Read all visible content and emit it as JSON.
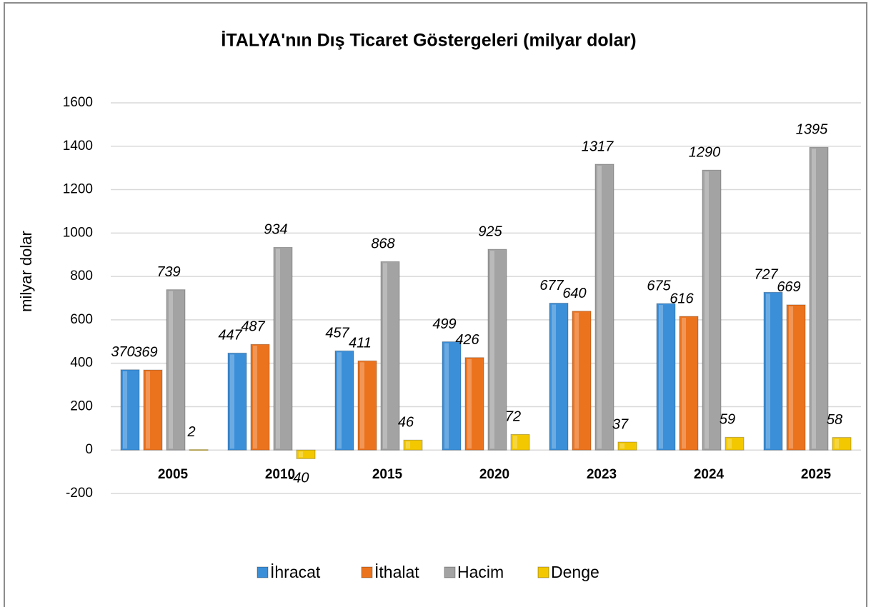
{
  "chart_data": {
    "type": "bar",
    "title": "İTALYA'nın Dış Ticaret Göstergeleri (milyar dolar)",
    "y_label": "milyar dolar",
    "categories": [
      "2005",
      "2010",
      "2015",
      "2020",
      "2023",
      "2024",
      "2025"
    ],
    "series": [
      {
        "name": "İhracat",
        "color": "#3b8fd9",
        "values": [
          370,
          447,
          457,
          499,
          677,
          675,
          727
        ]
      },
      {
        "name": "İthalat",
        "color": "#ec731e",
        "values": [
          369,
          487,
          411,
          426,
          640,
          616,
          669
        ]
      },
      {
        "name": "Hacim",
        "color": "#a3a3a3",
        "values": [
          739,
          934,
          868,
          925,
          1317,
          1290,
          1395
        ]
      },
      {
        "name": "Denge",
        "color": "#f3c800",
        "values": [
          2,
          -40,
          46,
          72,
          37,
          59,
          58
        ]
      }
    ],
    "ylim": [
      -200,
      1600
    ],
    "yticks": [
      -200,
      0,
      200,
      400,
      600,
      800,
      1000,
      1200,
      1400,
      1600
    ],
    "grid": true,
    "legend": "bottom"
  }
}
